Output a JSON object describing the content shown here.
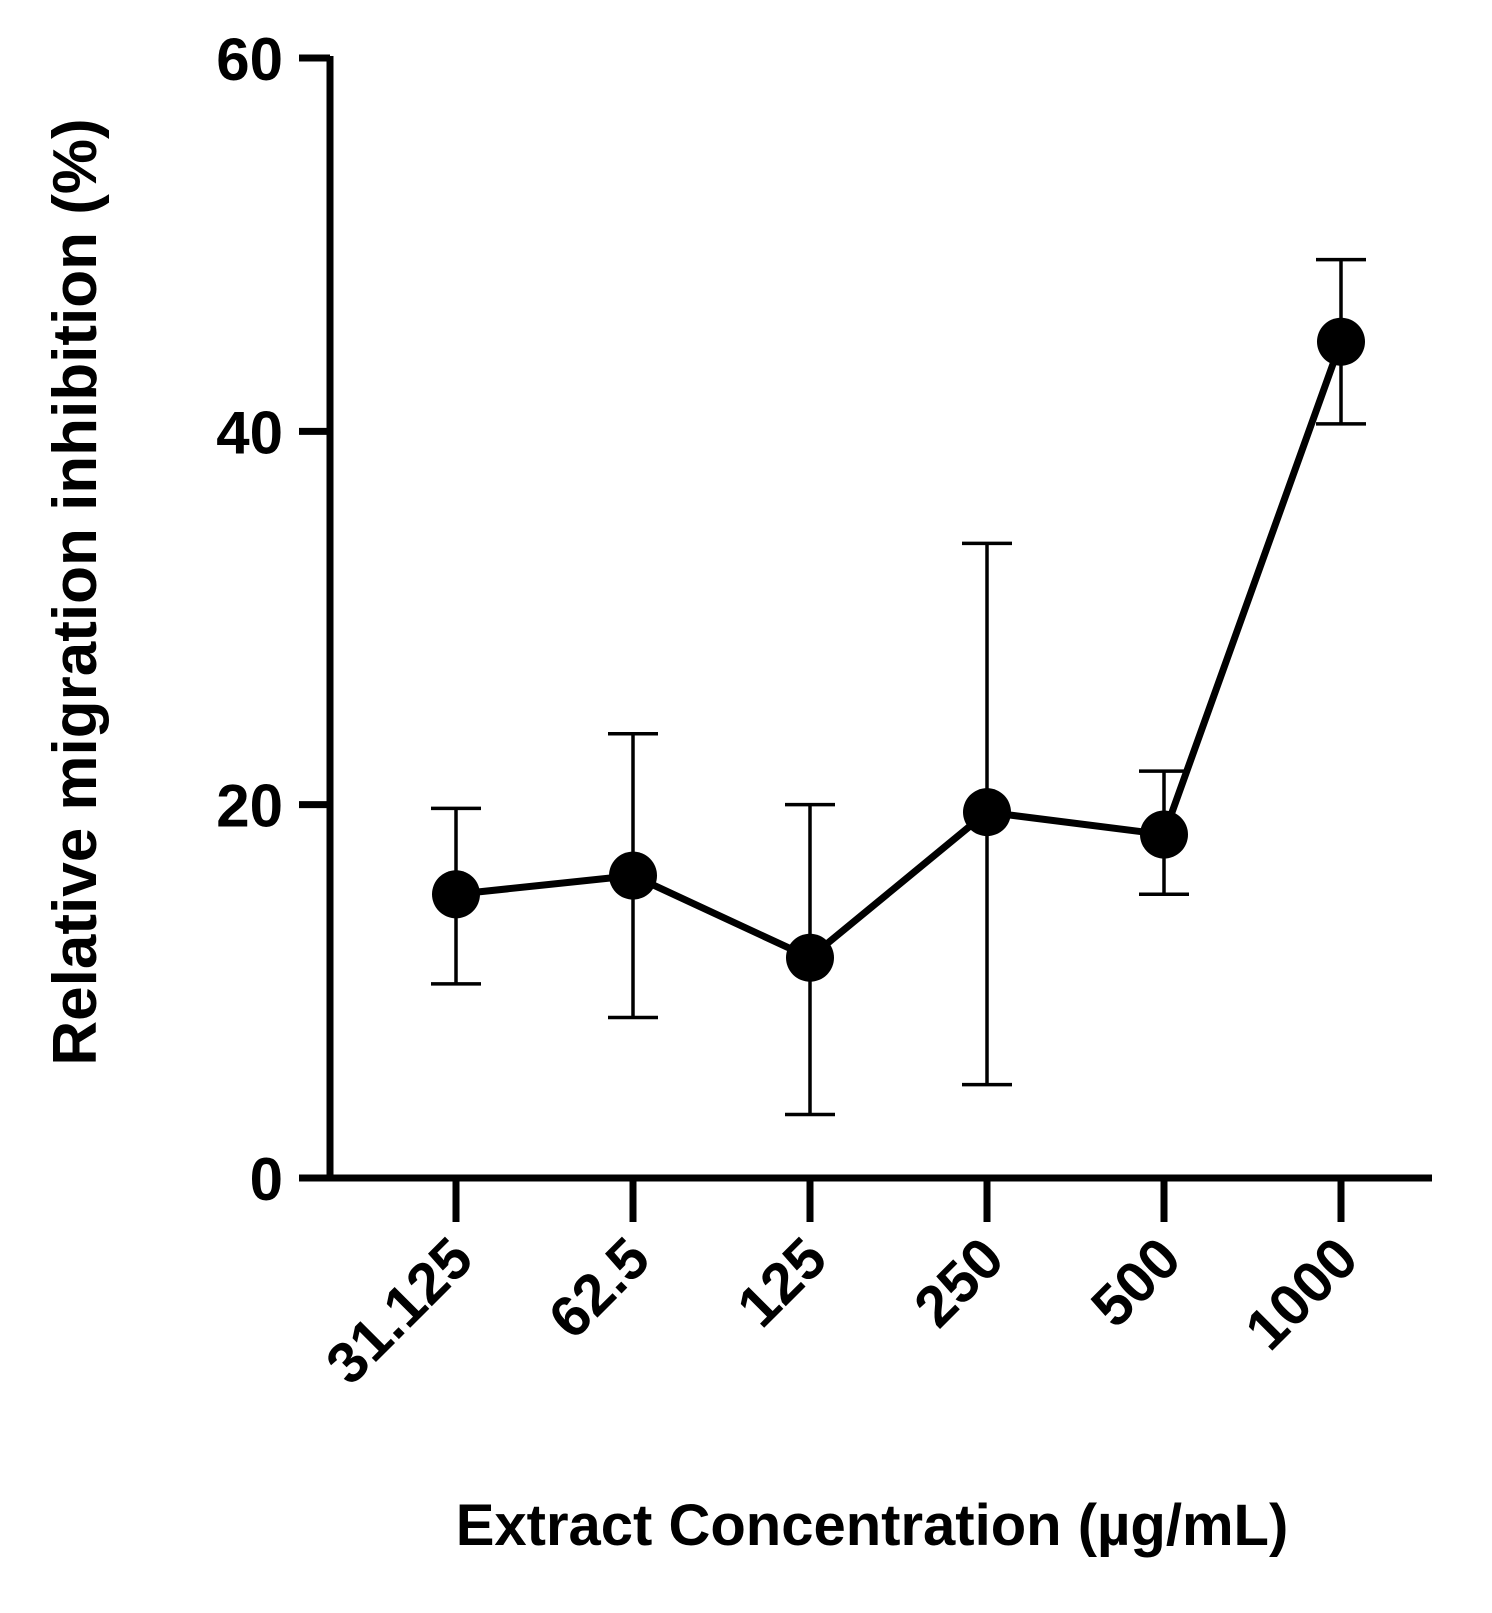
{
  "chart_data": {
    "type": "line",
    "title": "",
    "xlabel": "Extract Concentration (µg/mL)",
    "ylabel": "Relative migration inhibition (%)",
    "categories": [
      "31.125",
      "62.5",
      "125",
      "250",
      "500",
      "1000"
    ],
    "series": [
      {
        "name": "Relative migration inhibition",
        "values": [
          15.2,
          16.2,
          11.8,
          19.6,
          18.4,
          44.8
        ],
        "error_low": [
          10.4,
          8.6,
          3.4,
          5.0,
          15.2,
          40.4
        ],
        "error_high": [
          19.8,
          23.8,
          20.0,
          34.0,
          21.8,
          49.2
        ]
      }
    ],
    "ylim": [
      0,
      60
    ],
    "yticks": [
      0,
      20,
      40,
      60
    ],
    "grid": false,
    "colors": {
      "line": "#000000",
      "marker": "#000000",
      "axis": "#000000"
    }
  }
}
